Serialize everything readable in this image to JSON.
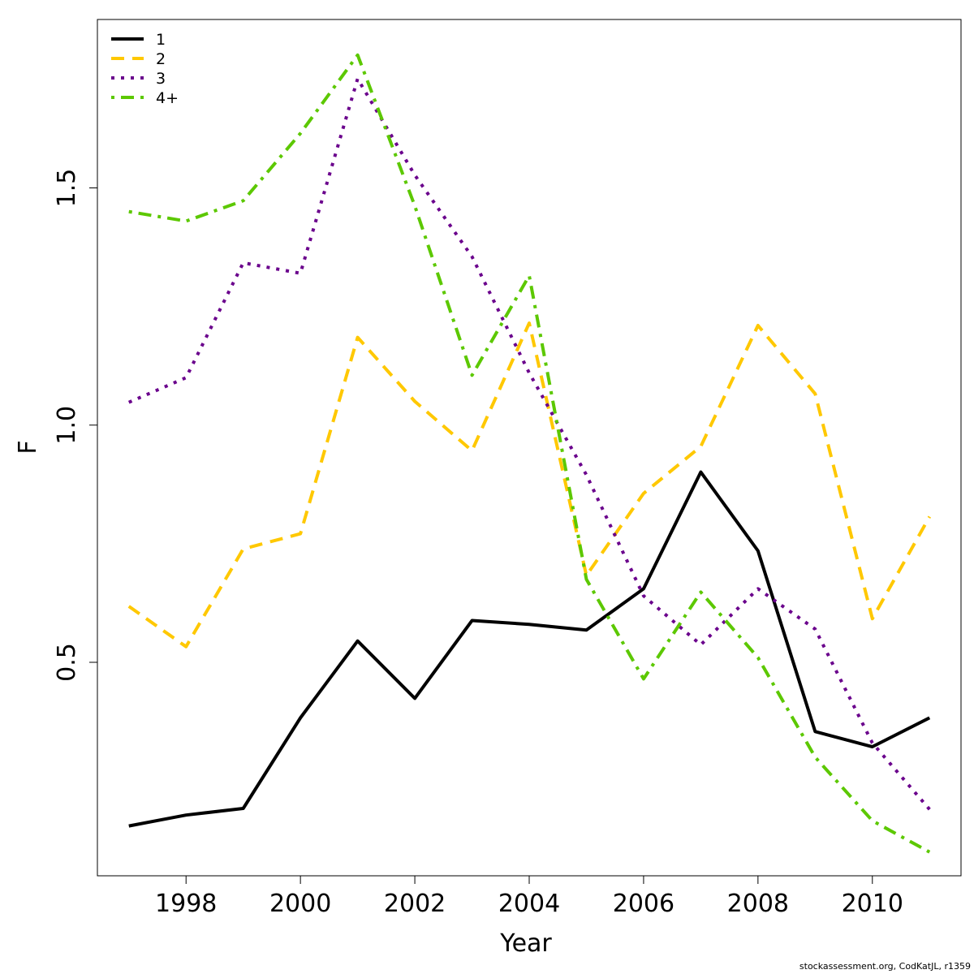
{
  "chart_data": {
    "type": "line",
    "title": "",
    "xlabel": "Year",
    "ylabel": "F",
    "x": [
      1997,
      1998,
      1999,
      2000,
      2001,
      2002,
      2003,
      2004,
      2005,
      2006,
      2007,
      2008,
      2009,
      2010,
      2011
    ],
    "xlim": [
      1996.45,
      2011.55
    ],
    "ylim": [
      0.05,
      1.855
    ],
    "x_ticks": [
      1998,
      2000,
      2002,
      2004,
      2006,
      2008,
      2010
    ],
    "x_tick_labels": [
      "1998",
      "2000",
      "2002",
      "2004",
      "2006",
      "2008",
      "2010"
    ],
    "y_ticks": [
      0.5,
      1.0,
      1.5
    ],
    "y_tick_labels": [
      "0.5",
      "1.0",
      "1.5"
    ],
    "grid": false,
    "legend_position": "top-left",
    "series": [
      {
        "name": "1",
        "color": "#000000",
        "dash": "solid",
        "values": [
          0.155,
          0.178,
          0.192,
          0.383,
          0.545,
          0.424,
          0.588,
          0.58,
          0.568,
          0.655,
          0.901,
          0.735,
          0.354,
          0.322,
          0.383
        ]
      },
      {
        "name": "2",
        "color": "#FFC800",
        "dash": "dashed",
        "values": [
          0.618,
          0.533,
          0.739,
          0.771,
          1.185,
          1.05,
          0.946,
          1.215,
          0.683,
          0.856,
          0.955,
          1.21,
          1.066,
          0.592,
          0.807
        ]
      },
      {
        "name": "3",
        "color": "#6A008C",
        "dash": "dotted",
        "values": [
          1.048,
          1.1,
          1.342,
          1.32,
          1.73,
          1.527,
          1.355,
          1.11,
          0.895,
          0.64,
          0.537,
          0.655,
          0.57,
          0.33,
          0.19
        ]
      },
      {
        "name": "4+",
        "color": "#5CC800",
        "dash": "dotdash",
        "values": [
          1.45,
          1.43,
          1.473,
          1.615,
          1.78,
          1.462,
          1.105,
          1.315,
          0.675,
          0.465,
          0.648,
          0.51,
          0.3,
          0.166,
          0.1
        ]
      }
    ]
  },
  "footer": {
    "credit": "stockassessment.org, CodKatJL, r1359"
  }
}
